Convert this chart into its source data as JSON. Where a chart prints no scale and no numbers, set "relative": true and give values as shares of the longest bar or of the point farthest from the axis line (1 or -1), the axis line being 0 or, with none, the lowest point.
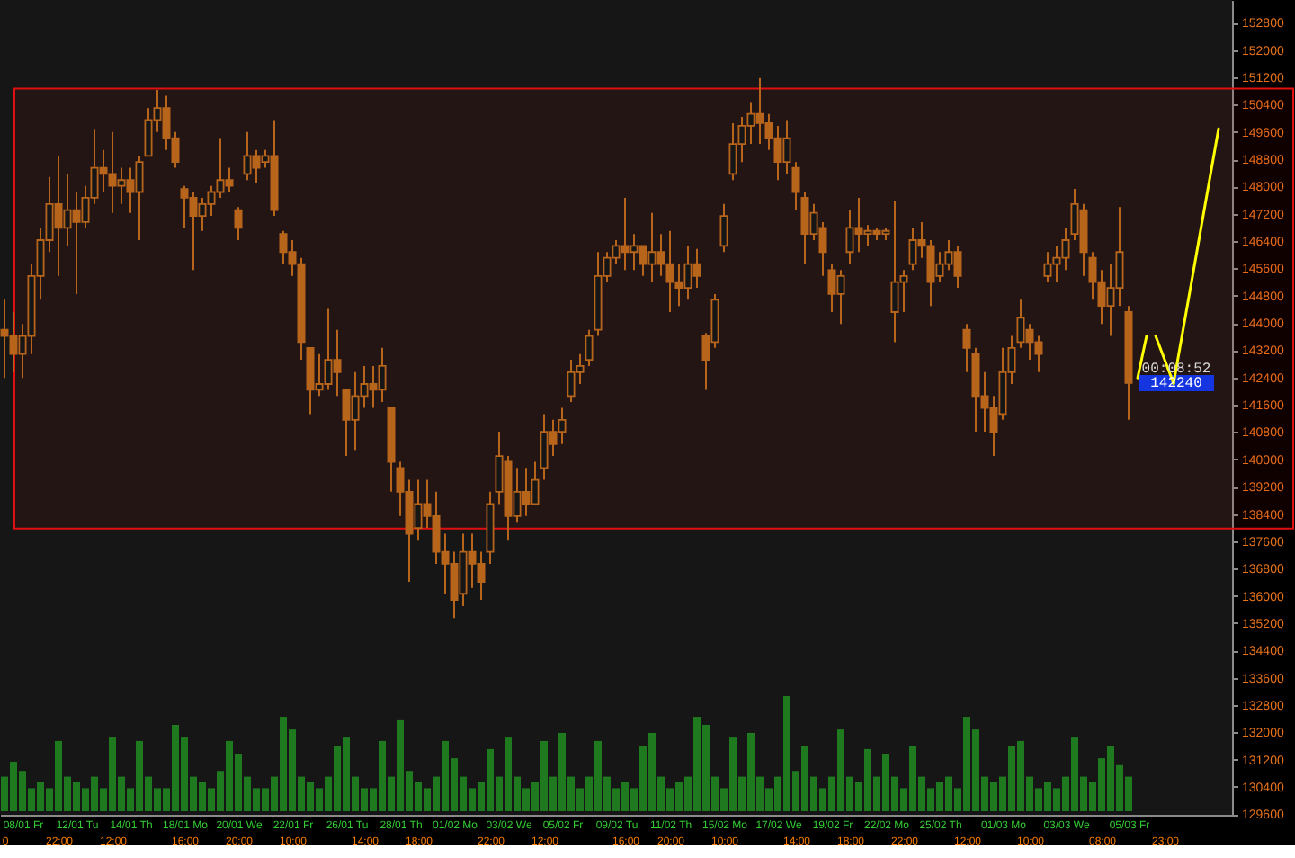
{
  "chart_data": [
    {
      "type": "candlestick",
      "categories": [
        null,
        null,
        "08/01 Fr",
        null,
        null,
        null,
        null,
        null,
        "12/01 Tu",
        null,
        null,
        null,
        null,
        null,
        "14/01 Th",
        null,
        null,
        null,
        null,
        null,
        "18/01 Mo",
        null,
        null,
        null,
        null,
        null,
        "20/01 We",
        null,
        null,
        null,
        null,
        null,
        "22/01 Fr",
        null,
        null,
        null,
        null,
        null,
        "26/01 Tu",
        null,
        null,
        null,
        null,
        null,
        "28/01 Th",
        null,
        null,
        null,
        null,
        null,
        "01/02 Mo",
        null,
        null,
        null,
        null,
        null,
        "03/02 We",
        null,
        null,
        null,
        null,
        null,
        "05/02 Fr",
        null,
        null,
        null,
        null,
        null,
        "09/02 Tu",
        null,
        null,
        null,
        null,
        null,
        "11/02 Th",
        null,
        null,
        null,
        null,
        null,
        "15/02 Mo",
        null,
        null,
        null,
        null,
        null,
        "17/02 We",
        null,
        null,
        null,
        null,
        null,
        "19/02 Fr",
        null,
        null,
        null,
        null,
        null,
        "22/02 Mo",
        null,
        null,
        null,
        null,
        null,
        "25/02 Th",
        null,
        null,
        null,
        null,
        null,
        null,
        "01/03 Mo",
        null,
        null,
        null,
        null,
        null,
        null,
        "03/03 We",
        null,
        null,
        null,
        null,
        null,
        null,
        "05/03 Fr",
        null,
        null,
        null,
        null,
        null,
        null,
        null,
        null,
        null,
        null,
        null
      ],
      "ohlc": [
        [
          143800,
          144680,
          142390,
          143620
        ],
        [
          143620,
          144320,
          142560,
          143090
        ],
        [
          143090,
          143970,
          142390,
          143620
        ],
        [
          143620,
          145730,
          143090,
          145380
        ],
        [
          145380,
          146790,
          144680,
          146430
        ],
        [
          146430,
          148280,
          146080,
          147490
        ],
        [
          147490,
          148900,
          145380,
          146790
        ],
        [
          146790,
          148370,
          146260,
          147310
        ],
        [
          147310,
          147840,
          144850,
          146960
        ],
        [
          146960,
          148020,
          146790,
          147670
        ],
        [
          147670,
          149690,
          147490,
          148550
        ],
        [
          148550,
          149070,
          147840,
          148370
        ],
        [
          148370,
          149600,
          147230,
          148020
        ],
        [
          148020,
          148550,
          147490,
          148190
        ],
        [
          148190,
          148550,
          147230,
          147840
        ],
        [
          147840,
          148900,
          146430,
          148720
        ],
        [
          148900,
          150300,
          148900,
          149950
        ],
        [
          149950,
          150830,
          149600,
          150300
        ],
        [
          150300,
          150660,
          149070,
          149420
        ],
        [
          149420,
          149600,
          148550,
          148720
        ],
        [
          147930,
          148020,
          146790,
          147670
        ],
        [
          147670,
          147840,
          145550,
          147140
        ],
        [
          147140,
          147670,
          146700,
          147490
        ],
        [
          147490,
          148020,
          147140,
          147840
        ],
        [
          147840,
          149420,
          147670,
          148190
        ],
        [
          148190,
          148550,
          147840,
          148020
        ],
        [
          147310,
          147400,
          146430,
          146790
        ],
        [
          148370,
          149600,
          148190,
          148900
        ],
        [
          148900,
          149070,
          148110,
          148550
        ],
        [
          148720,
          149070,
          148550,
          148900
        ],
        [
          148900,
          149950,
          147140,
          147310
        ],
        [
          146610,
          146700,
          145730,
          146080
        ],
        [
          146080,
          146430,
          145380,
          145730
        ],
        [
          145730,
          145910,
          142920,
          143440
        ],
        [
          143270,
          143270,
          141330,
          142040
        ],
        [
          142040,
          143090,
          141860,
          142210
        ],
        [
          142210,
          144410,
          142040,
          142920
        ],
        [
          142920,
          143800,
          141860,
          142560
        ],
        [
          142040,
          142040,
          140100,
          141160
        ],
        [
          141160,
          142560,
          140280,
          141860
        ],
        [
          141860,
          142740,
          141510,
          142210
        ],
        [
          142210,
          142740,
          141510,
          142040
        ],
        [
          142040,
          143270,
          141680,
          142740
        ],
        [
          141510,
          141510,
          139050,
          139930
        ],
        [
          139750,
          139930,
          138340,
          139050
        ],
        [
          139050,
          139400,
          136410,
          137820
        ],
        [
          137990,
          139400,
          137640,
          138690
        ],
        [
          138690,
          139400,
          137990,
          138340
        ],
        [
          138340,
          139050,
          136940,
          137290
        ],
        [
          137290,
          137820,
          136060,
          136940
        ],
        [
          136940,
          137290,
          135350,
          135880
        ],
        [
          136060,
          137820,
          135700,
          137290
        ],
        [
          137290,
          137820,
          136230,
          136940
        ],
        [
          136940,
          137290,
          135880,
          136410
        ],
        [
          137290,
          139050,
          136940,
          138690
        ],
        [
          139050,
          140810,
          138690,
          140100
        ],
        [
          139930,
          140100,
          137640,
          138340
        ],
        [
          138340,
          139750,
          138170,
          139050
        ],
        [
          139050,
          139750,
          138340,
          138690
        ],
        [
          138690,
          139930,
          138690,
          139400
        ],
        [
          139750,
          141330,
          139400,
          140810
        ],
        [
          140810,
          141160,
          140100,
          140450
        ],
        [
          140810,
          141510,
          140450,
          141160
        ],
        [
          141860,
          142920,
          141680,
          142560
        ],
        [
          142560,
          143090,
          142210,
          142740
        ],
        [
          142920,
          143800,
          142740,
          143620
        ],
        [
          143800,
          146080,
          143620,
          145380
        ],
        [
          145380,
          146080,
          145200,
          145910
        ],
        [
          145910,
          146430,
          145730,
          146260
        ],
        [
          146260,
          147670,
          145550,
          146080
        ],
        [
          146080,
          146610,
          145550,
          146260
        ],
        [
          146260,
          146260,
          145380,
          145730
        ],
        [
          145730,
          147230,
          145200,
          146080
        ],
        [
          146080,
          146610,
          145380,
          145730
        ],
        [
          145730,
          146700,
          144320,
          145200
        ],
        [
          145200,
          145730,
          144500,
          145030
        ],
        [
          145030,
          146260,
          144680,
          145730
        ],
        [
          145730,
          146170,
          145030,
          145380
        ],
        [
          143620,
          143710,
          142040,
          142920
        ],
        [
          143440,
          144850,
          143270,
          144680
        ],
        [
          146260,
          147490,
          146080,
          147140
        ],
        [
          148370,
          149860,
          148190,
          149250
        ],
        [
          149250,
          150040,
          148720,
          149780
        ],
        [
          149780,
          150480,
          149250,
          150130
        ],
        [
          150130,
          151180,
          149250,
          149860
        ],
        [
          149860,
          150130,
          149070,
          149420
        ],
        [
          149420,
          149780,
          148190,
          148720
        ],
        [
          148720,
          149950,
          148370,
          149420
        ],
        [
          148550,
          148720,
          147310,
          147840
        ],
        [
          147670,
          147840,
          145730,
          146610
        ],
        [
          146610,
          147490,
          146430,
          147230
        ],
        [
          146790,
          146960,
          145380,
          146080
        ],
        [
          145550,
          145730,
          144320,
          144850
        ],
        [
          144850,
          145550,
          143970,
          145380
        ],
        [
          146080,
          147310,
          145730,
          146790
        ],
        [
          146790,
          147670,
          146080,
          146610
        ],
        [
          146610,
          146870,
          146260,
          146700
        ],
        [
          146700,
          146790,
          146430,
          146610
        ],
        [
          146610,
          146790,
          146430,
          146700
        ],
        [
          144320,
          147580,
          143440,
          145200
        ],
        [
          145200,
          145550,
          144320,
          145380
        ],
        [
          145730,
          146790,
          145550,
          146430
        ],
        [
          146430,
          146960,
          145910,
          146260
        ],
        [
          146260,
          146430,
          144500,
          145200
        ],
        [
          145380,
          146080,
          145200,
          145730
        ],
        [
          145730,
          146430,
          145550,
          146080
        ],
        [
          146080,
          146260,
          145030,
          145380
        ],
        [
          143800,
          143970,
          142560,
          143270
        ],
        [
          143090,
          143270,
          140810,
          141860
        ],
        [
          141860,
          142560,
          140810,
          141510
        ],
        [
          141510,
          141860,
          140100,
          140810
        ],
        [
          141330,
          143270,
          141160,
          142560
        ],
        [
          142560,
          143620,
          142210,
          143270
        ],
        [
          143440,
          144680,
          143270,
          144150
        ],
        [
          143800,
          143970,
          142920,
          143440
        ],
        [
          143440,
          143620,
          142560,
          143090
        ],
        [
          145380,
          146080,
          145200,
          145730
        ],
        [
          145730,
          146260,
          145200,
          145910
        ],
        [
          145910,
          146790,
          145550,
          146430
        ],
        [
          146610,
          147930,
          146430,
          147490
        ],
        [
          147310,
          147490,
          145380,
          146080
        ],
        [
          145910,
          146080,
          144680,
          145200
        ],
        [
          145200,
          145550,
          143970,
          144500
        ],
        [
          144500,
          145730,
          143620,
          145030
        ],
        [
          145030,
          147400,
          144500,
          146080
        ],
        [
          144320,
          144500,
          141160,
          142240
        ],
        null,
        null,
        null,
        null,
        null,
        null,
        null,
        null,
        null,
        null,
        null
      ],
      "color": "#b8651c",
      "series": [
        {
          "type": "line",
          "color": "#ffff00",
          "values": [
            null,
            null,
            null,
            null,
            null,
            null,
            null,
            null,
            null,
            null,
            null,
            null,
            null,
            null,
            null,
            null,
            null,
            null,
            null,
            null,
            null,
            null,
            null,
            null,
            null,
            null,
            null,
            null,
            null,
            null,
            null,
            null,
            null,
            null,
            null,
            null,
            null,
            null,
            null,
            null,
            null,
            null,
            null,
            null,
            null,
            null,
            null,
            null,
            null,
            null,
            null,
            null,
            null,
            null,
            null,
            null,
            null,
            null,
            null,
            null,
            null,
            null,
            null,
            null,
            null,
            null,
            null,
            null,
            null,
            null,
            null,
            null,
            null,
            null,
            null,
            null,
            null,
            null,
            null,
            null,
            null,
            null,
            null,
            null,
            null,
            null,
            null,
            null,
            null,
            null,
            null,
            null,
            null,
            null,
            null,
            null,
            null,
            null,
            null,
            null,
            null,
            null,
            null,
            null,
            null,
            null,
            null,
            null,
            null,
            null,
            null,
            null,
            null,
            null,
            null,
            null,
            null,
            null,
            null,
            null,
            null,
            null,
            null,
            null,
            null,
            null,
            142390,
            143620,
            null,
            null,
            null,
            null,
            null,
            null,
            null,
            null,
            null
          ]
        },
        {
          "type": "line",
          "color": "#ffff00",
          "values": [
            null,
            null,
            null,
            null,
            null,
            null,
            null,
            null,
            null,
            null,
            null,
            null,
            null,
            null,
            null,
            null,
            null,
            null,
            null,
            null,
            null,
            null,
            null,
            null,
            null,
            null,
            null,
            null,
            null,
            null,
            null,
            null,
            null,
            null,
            null,
            null,
            null,
            null,
            null,
            null,
            null,
            null,
            null,
            null,
            null,
            null,
            null,
            null,
            null,
            null,
            null,
            null,
            null,
            null,
            null,
            null,
            null,
            null,
            null,
            null,
            null,
            null,
            null,
            null,
            null,
            null,
            null,
            null,
            null,
            null,
            null,
            null,
            null,
            null,
            null,
            null,
            null,
            null,
            null,
            null,
            null,
            null,
            null,
            null,
            null,
            null,
            null,
            null,
            null,
            null,
            null,
            null,
            null,
            null,
            null,
            null,
            null,
            null,
            null,
            null,
            null,
            null,
            null,
            null,
            null,
            null,
            null,
            null,
            null,
            null,
            null,
            null,
            null,
            null,
            null,
            null,
            null,
            null,
            null,
            null,
            null,
            null,
            null,
            null,
            null,
            null,
            null,
            null,
            143620,
            142930,
            142230,
            null,
            null,
            null,
            null,
            null,
            null
          ]
        },
        {
          "type": "line",
          "color": "#ffff00",
          "values": [
            null,
            null,
            null,
            null,
            null,
            null,
            null,
            null,
            null,
            null,
            null,
            null,
            null,
            null,
            null,
            null,
            null,
            null,
            null,
            null,
            null,
            null,
            null,
            null,
            null,
            null,
            null,
            null,
            null,
            null,
            null,
            null,
            null,
            null,
            null,
            null,
            null,
            null,
            null,
            null,
            null,
            null,
            null,
            null,
            null,
            null,
            null,
            null,
            null,
            null,
            null,
            null,
            null,
            null,
            null,
            null,
            null,
            null,
            null,
            null,
            null,
            null,
            null,
            null,
            null,
            null,
            null,
            null,
            null,
            null,
            null,
            null,
            null,
            null,
            null,
            null,
            null,
            null,
            null,
            null,
            null,
            null,
            null,
            null,
            null,
            null,
            null,
            null,
            null,
            null,
            null,
            null,
            null,
            null,
            null,
            null,
            null,
            null,
            null,
            null,
            null,
            null,
            null,
            null,
            null,
            null,
            null,
            null,
            null,
            null,
            null,
            null,
            null,
            null,
            null,
            null,
            null,
            null,
            null,
            null,
            null,
            null,
            null,
            null,
            null,
            null,
            null,
            null,
            null,
            null,
            142230,
            143720,
            145210,
            146710,
            148200,
            149690,
            null
          ]
        }
      ],
      "ylim": [
        129580,
        153470
      ],
      "yticks": [
        129600,
        130400,
        131200,
        132000,
        132800,
        133600,
        134400,
        135200,
        136000,
        136800,
        137600,
        138400,
        139200,
        140000,
        140800,
        141600,
        142400,
        143200,
        144000,
        144800,
        145600,
        146400,
        147200,
        148000,
        148800,
        149600,
        150400,
        151200,
        152000,
        152800
      ],
      "bands": [
        {
          "axis": "y",
          "from": 137970,
          "to": 150870,
          "color": "#e01010"
        }
      ],
      "annotations": [
        {
          "text": "00:08:52",
          "y": 142650
        },
        {
          "text": "142240",
          "y": 142240
        }
      ]
    },
    {
      "type": "bar",
      "categories": [
        "0",
        null,
        null,
        null,
        null,
        null,
        "22:00",
        null,
        null,
        null,
        null,
        null,
        "12:00",
        null,
        null,
        null,
        null,
        null,
        null,
        null,
        "16:00",
        null,
        null,
        null,
        null,
        null,
        "20:00",
        null,
        null,
        null,
        null,
        null,
        "10:00",
        null,
        null,
        null,
        null,
        null,
        null,
        null,
        "14:00",
        null,
        null,
        null,
        null,
        null,
        "18:00",
        null,
        null,
        null,
        null,
        null,
        null,
        null,
        "22:00",
        null,
        null,
        null,
        null,
        null,
        "12:00",
        null,
        null,
        null,
        null,
        null,
        null,
        null,
        null,
        "16:00",
        null,
        null,
        null,
        null,
        "20:00",
        null,
        null,
        null,
        null,
        null,
        "10:00",
        null,
        null,
        null,
        null,
        null,
        null,
        null,
        "14:00",
        null,
        null,
        null,
        null,
        null,
        "18:00",
        null,
        null,
        null,
        null,
        null,
        "22:00",
        null,
        null,
        null,
        null,
        null,
        null,
        "12:00",
        null,
        null,
        null,
        null,
        null,
        null,
        "10:00",
        null,
        null,
        null,
        null,
        null,
        null,
        null,
        "08:00",
        null,
        null,
        null,
        null,
        null,
        null,
        "23:00",
        null,
        null,
        null,
        null,
        null,
        null,
        null
      ],
      "values": [
        0.3,
        0.43,
        0.35,
        0.2,
        0.25,
        0.2,
        0.61,
        0.3,
        0.25,
        0.2,
        0.3,
        0.2,
        0.64,
        0.3,
        0.2,
        0.61,
        0.3,
        0.2,
        0.2,
        0.75,
        0.64,
        0.3,
        0.25,
        0.2,
        0.35,
        0.61,
        0.5,
        0.3,
        0.2,
        0.2,
        0.3,
        0.82,
        0.71,
        0.3,
        0.25,
        0.2,
        0.3,
        0.57,
        0.64,
        0.3,
        0.2,
        0.2,
        0.61,
        0.3,
        0.79,
        0.35,
        0.25,
        0.2,
        0.3,
        0.61,
        0.46,
        0.3,
        0.2,
        0.25,
        0.54,
        0.3,
        0.64,
        0.3,
        0.2,
        0.25,
        0.61,
        0.3,
        0.68,
        0.3,
        0.2,
        0.3,
        0.61,
        0.3,
        0.2,
        0.25,
        0.2,
        0.57,
        0.68,
        0.3,
        0.2,
        0.25,
        0.3,
        0.82,
        0.75,
        0.3,
        0.2,
        0.64,
        0.3,
        0.68,
        0.3,
        0.2,
        0.3,
        1,
        0.35,
        0.57,
        0.3,
        0.2,
        0.3,
        0.71,
        0.3,
        0.25,
        0.54,
        0.3,
        0.5,
        0.3,
        0.2,
        0.57,
        0.3,
        0.2,
        0.25,
        0.3,
        0.2,
        0.82,
        0.71,
        0.3,
        0.25,
        0.3,
        0.57,
        0.61,
        0.3,
        0.2,
        0.25,
        0.2,
        0.3,
        0.64,
        0.3,
        0.25,
        0.46,
        0.57,
        0.4,
        0.3,
        null,
        null,
        null,
        null,
        null,
        null,
        null,
        null,
        null,
        null,
        null
      ],
      "color": "#1f7a1f",
      "relative": true,
      "tick_labels": "x"
    }
  ]
}
